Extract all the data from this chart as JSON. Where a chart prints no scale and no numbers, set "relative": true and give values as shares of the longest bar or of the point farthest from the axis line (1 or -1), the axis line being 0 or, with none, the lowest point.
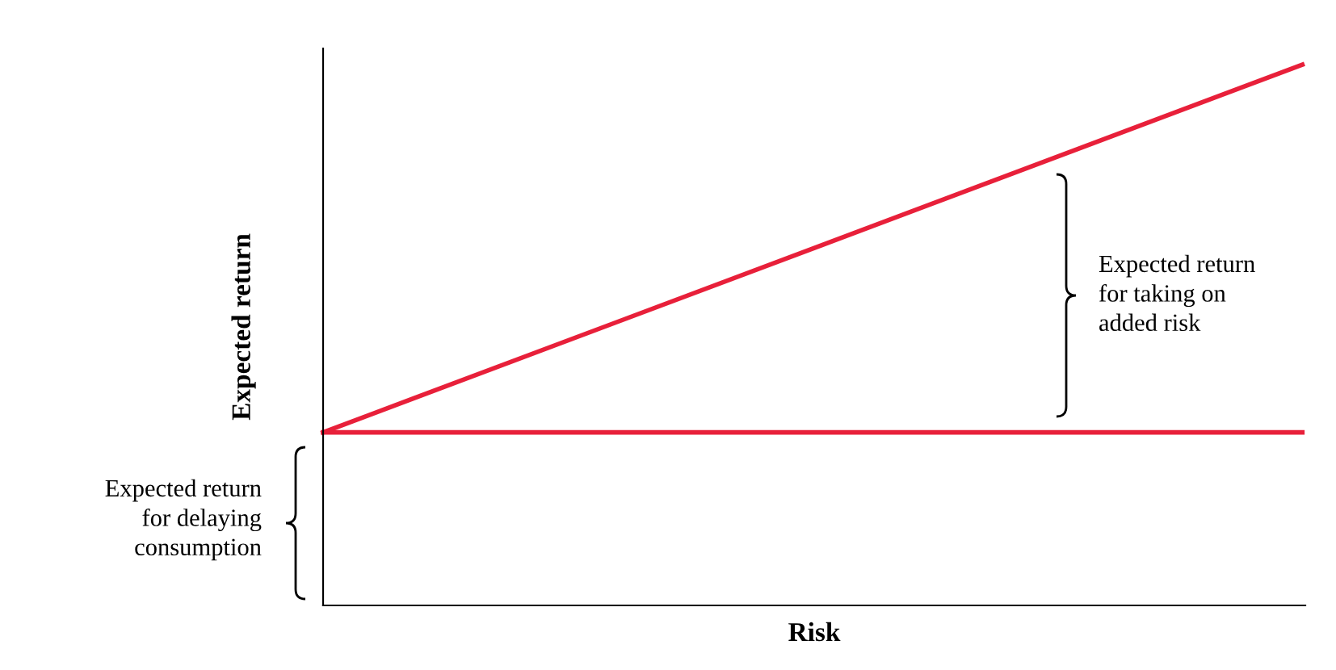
{
  "chart_data": {
    "type": "line",
    "relative": true,
    "xlabel": "Risk",
    "ylabel": "Expected return",
    "categories": [
      null,
      null
    ],
    "series": [
      {
        "color": "#e8203a",
        "values": [
          0.32,
          1
        ]
      },
      {
        "color": "#e8203a",
        "values": [
          0.32,
          0.32
        ]
      }
    ],
    "annotations": [
      "Expected return\nfor taking on\nadded risk",
      "Expected return\nfor delaying\nconsumption"
    ],
    "grid": false,
    "marker": "none",
    "line_style": "solid"
  }
}
